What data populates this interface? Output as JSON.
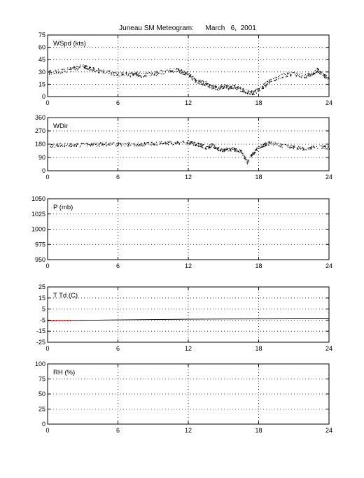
{
  "title": "Juneau SM Meteogram:      March   6,  2001",
  "chart_data": [
    {
      "type": "scatter",
      "panel_label": "WSpd (kts)",
      "x_ticks": [
        0,
        6,
        12,
        18,
        24
      ],
      "xlim": [
        0,
        24
      ],
      "y_ticks": [
        0,
        15,
        30,
        45,
        60,
        75
      ],
      "ylim": [
        0,
        75
      ],
      "grid": true,
      "series": [
        {
          "color": "#000000",
          "x": [
            0.0,
            1.0,
            2.0,
            3.0,
            3.5,
            4.0,
            5.0,
            6.0,
            7.0,
            7.5,
            8.0,
            9.0,
            10.0,
            11.0,
            11.5,
            12.0,
            12.5,
            13.0,
            13.5,
            14.0,
            14.5,
            15.0,
            15.5,
            16.0,
            16.5,
            17.0,
            17.5,
            18.0,
            18.5,
            19.0,
            20.0,
            21.0,
            22.0,
            22.5,
            23.0,
            23.5,
            24.0
          ],
          "y": [
            30,
            31,
            34,
            37,
            35,
            33,
            30,
            28,
            27,
            28,
            26,
            28,
            31,
            33,
            30,
            28,
            20,
            18,
            16,
            12,
            10,
            13,
            11,
            12,
            9,
            6,
            5,
            9,
            14,
            20,
            26,
            28,
            25,
            28,
            33,
            26,
            22
          ]
        }
      ]
    },
    {
      "type": "scatter",
      "panel_label": "WDir",
      "x_ticks": [
        0,
        6,
        12,
        18,
        24
      ],
      "xlim": [
        0,
        24
      ],
      "y_ticks": [
        0,
        90,
        180,
        270,
        360
      ],
      "ylim": [
        0,
        360
      ],
      "grid": true,
      "series": [
        {
          "color": "#000000",
          "x": [
            0.0,
            1.0,
            2.0,
            3.0,
            4.0,
            5.0,
            6.0,
            7.0,
            8.0,
            9.0,
            10.0,
            11.0,
            12.0,
            12.5,
            13.0,
            13.5,
            14.0,
            14.5,
            15.0,
            15.5,
            16.0,
            16.5,
            17.0,
            17.5,
            18.0,
            18.5,
            19.0,
            20.0,
            21.0,
            22.0,
            23.0,
            24.0
          ],
          "y": [
            170,
            178,
            175,
            178,
            180,
            183,
            180,
            180,
            182,
            185,
            188,
            190,
            195,
            185,
            175,
            160,
            175,
            150,
            140,
            150,
            145,
            130,
            60,
            120,
            160,
            180,
            190,
            170,
            160,
            150,
            165,
            160
          ]
        }
      ]
    },
    {
      "type": "line",
      "panel_label": "P (mb)",
      "x_ticks": [
        0,
        6,
        12,
        18,
        24
      ],
      "xlim": [
        0,
        24
      ],
      "y_ticks": [
        950,
        975,
        1000,
        1025,
        1050
      ],
      "ylim": [
        950,
        1050
      ],
      "grid": true,
      "series": []
    },
    {
      "type": "line",
      "panel_label": "T Td (C)",
      "x_ticks": [
        0,
        6,
        12,
        18,
        24
      ],
      "xlim": [
        0,
        24
      ],
      "y_ticks": [
        -25,
        -15,
        -5,
        5,
        15,
        25
      ],
      "ylim": [
        -25,
        25
      ],
      "grid": true,
      "series": [
        {
          "color": "#000000",
          "x": [
            0,
            3,
            6,
            9,
            12,
            15,
            18,
            21,
            24
          ],
          "y": [
            -5.5,
            -5.2,
            -4.8,
            -4.5,
            -4.2,
            -4.0,
            -3.9,
            -3.8,
            -3.8
          ]
        },
        {
          "color": "#ff0000",
          "x": [
            0,
            0.5,
            1,
            1.5,
            2
          ],
          "y": [
            -5.6,
            -5.6,
            -5.5,
            -5.5,
            -5.5
          ]
        }
      ]
    },
    {
      "type": "line",
      "panel_label": "RH (%)",
      "x_ticks": [
        0,
        6,
        12,
        18,
        24
      ],
      "xlim": [
        0,
        24
      ],
      "y_ticks": [
        0,
        25,
        50,
        75,
        100
      ],
      "ylim": [
        0,
        100
      ],
      "grid": true,
      "series": []
    }
  ]
}
